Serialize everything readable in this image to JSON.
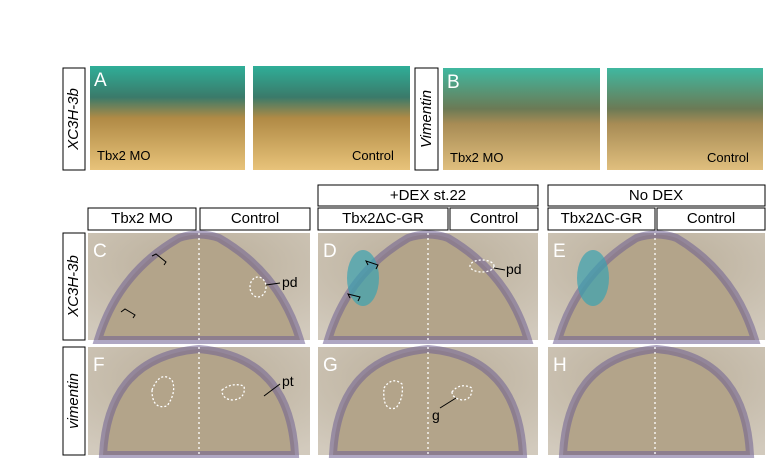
{
  "top_panels": [
    {
      "row_label": "XC3H-3b",
      "letter": "A",
      "left_caption": "Tbx2 MO",
      "right_caption": "Control"
    },
    {
      "row_label": "Vimentin",
      "letter": "B",
      "left_caption": "Tbx2 MO",
      "right_caption": "Control"
    }
  ],
  "group_headers": [
    "+DEX st.22",
    "No DEX"
  ],
  "column_headers": [
    "Tbx2 MO",
    "Control",
    "Tbx2ΔC-GR",
    "Control",
    "Tbx2ΔC-GR",
    "Control"
  ],
  "row_labels": [
    "XC3H-3b",
    "vimentin"
  ],
  "panels": [
    {
      "letter": "C",
      "annotation": "pd"
    },
    {
      "letter": "D",
      "annotation": "pd"
    },
    {
      "letter": "E"
    },
    {
      "letter": "F",
      "annotation": "pt"
    },
    {
      "letter": "G",
      "annotation": "g"
    },
    {
      "letter": "H"
    }
  ]
}
